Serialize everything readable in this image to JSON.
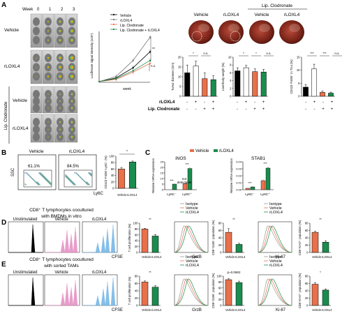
{
  "panels": {
    "A": {
      "letter": "A",
      "week_label": "Week",
      "weeks": [
        "0",
        "1",
        "2",
        "3"
      ],
      "row_labels": [
        "Vehicle",
        "rLOXL4",
        "Vehicle",
        "rLOXL4"
      ],
      "group_label": "Lip. Clodronate",
      "line_chart": {
        "ylabel": "Luciferase signal intensity (x10⁶)",
        "xlabel": "week",
        "legend": [
          "Vehicle",
          "rLOXL4",
          "Lip. Clodronate",
          "Lip. Clodronate + rLOXL4"
        ],
        "stats": [
          "**",
          "n.s."
        ]
      },
      "photo_labels": [
        "Vehicle",
        "rLOXL4",
        "Vehicle",
        "rLOXL4"
      ],
      "photo_group_label": "Lip. Clodronate",
      "table_rows": [
        "rLOXL4",
        "Lip. Clodronate"
      ],
      "table_values": [
        [
          "-",
          "+",
          "-",
          "+"
        ],
        [
          "-",
          "-",
          "+",
          "+"
        ]
      ],
      "bar_charts": [
        {
          "ylabel": "Tumor diameter (mm)",
          "ticks": [
            "0",
            "5",
            "10",
            "15",
            "20"
          ],
          "stats": [
            "*",
            "n.s."
          ]
        },
        {
          "ylabel": "Liver/body weight (%)",
          "ticks": [
            "0",
            "2",
            "4",
            "6",
            "8",
            "10"
          ],
          "stats": [
            "*",
            "*",
            "n.s."
          ]
        },
        {
          "ylabel": "CD11b⁺F4/80⁺ in TILs (%)",
          "ticks": [
            "0",
            "5",
            "10",
            "15"
          ],
          "stats": [
            "***",
            "***",
            "n.s."
          ]
        }
      ]
    },
    "B": {
      "letter": "B",
      "flow_titles": [
        "Vehicle",
        "rLOXL4"
      ],
      "percents": [
        "61.1%",
        "84.5%"
      ],
      "yaxis": "SSC",
      "xaxis": "Ly6C",
      "bar": {
        "ylabel": "CD11b⁺F4/80⁺Ly6C⁺ (%)",
        "ticks": [
          "0",
          "20",
          "40",
          "60",
          "80",
          "100"
        ],
        "stat": "*"
      }
    },
    "C": {
      "letter": "C",
      "legend": [
        "Vehicle",
        "rLOXL4"
      ],
      "charts": [
        {
          "title": "iNOS",
          "ylabel": "Relative mRNA expression",
          "ticks": [
            "0",
            "5",
            "10",
            "15",
            "20",
            "25"
          ],
          "groups": [
            "Ly6C⁻",
            "Ly6C⁺"
          ],
          "note": "not detectable",
          "stats": [
            "***",
            "***"
          ]
        },
        {
          "title": "STAB1",
          "ylabel": "Relative mRNA expression",
          "ticks": [
            "0.00",
            "0.01",
            "0.02",
            "0.03",
            "0.04"
          ],
          "groups": [
            "Ly6C⁻",
            "Ly6C⁺"
          ],
          "stats": [
            "***",
            "***"
          ]
        }
      ]
    },
    "D": {
      "letter": "D",
      "title_line1": "CD8⁺ T lymphocytes cocultured",
      "title_line2": "with BMDMs in vitro",
      "hist_titles": [
        "Unstimulated",
        "Vehicle",
        "rLOXL4"
      ],
      "cfse": "CFSE",
      "prolif_ylabel": "T cell proliferation (%)",
      "markers": [
        "GrzB",
        "Ki-67"
      ],
      "overlay_legend": [
        "Isotype",
        "Vehicle",
        "rLOXL4"
      ],
      "pop_ylabels": [
        "CD8⁺GrzB⁺ population (%)",
        "CD8⁺Ki-67⁺ population (%)"
      ],
      "ticks_prolif": [
        "0",
        "20",
        "40",
        "60",
        "80",
        "100"
      ],
      "ticks_pop": [
        "0",
        "20",
        "40",
        "60",
        "80"
      ],
      "stats": [
        "**",
        "**",
        "**"
      ]
    },
    "E": {
      "letter": "E",
      "title_line1": "CD8⁺ T lymphocytes cocultured",
      "title_line2": "with sorted TAMs",
      "hist_titles": [
        "Unstimulated",
        "Vehicle",
        "rLOXL4"
      ],
      "cfse": "CFSE",
      "prolif_ylabel": "T cell proliferation (%)",
      "markers": [
        "GrzB",
        "Ki-67"
      ],
      "overlay_legend": [
        "Isotype",
        "Vehicle",
        "rLOXL4"
      ],
      "pop_ylabels": [
        "CD8⁺GrzB⁺ population (%)",
        "CD8⁺Ki-67⁺ population (%)"
      ],
      "ticks_prolif": [
        "0",
        "20",
        "40",
        "60",
        "80"
      ],
      "ticks_pop": [
        "0",
        "20",
        "40",
        "60",
        "80",
        "100"
      ],
      "ticks_pop2": [
        "0",
        "20",
        "40",
        "60",
        "80"
      ],
      "stats": [
        "**",
        "p=0.0682",
        "*"
      ]
    }
  },
  "colors": {
    "vehicle": "#000000",
    "rloxl4": "#ffffff",
    "lip": "#e8704a",
    "lip_rloxl4": "#1a8c4e",
    "orange": "#e8704a",
    "green": "#1a8c4e",
    "pink": "#e38cc1",
    "blue": "#6fb3e6",
    "isotype": "#999999"
  },
  "chart_data": [
    {
      "type": "line",
      "panel": "A",
      "x": [
        0,
        1,
        2,
        3
      ],
      "series": [
        {
          "name": "Vehicle",
          "values": [
            0.1,
            0.6,
            2.0,
            4.2
          ]
        },
        {
          "name": "rLOXL4",
          "values": [
            0.1,
            0.8,
            3.0,
            6.2
          ]
        },
        {
          "name": "Lip. Clodronate",
          "values": [
            0.1,
            0.4,
            1.4,
            2.6
          ]
        },
        {
          "name": "Lip. Clodronate + rLOXL4",
          "values": [
            0.1,
            0.5,
            1.6,
            3.0
          ]
        }
      ],
      "xlabel": "week",
      "ylabel": "Luciferase signal intensity (x10⁶)"
    },
    {
      "type": "bar",
      "panel": "A",
      "categories": [
        "Vehicle",
        "rLOXL4",
        "Lip. Clodronate",
        "Lip. Clodronate + rLOXL4"
      ],
      "values": [
        12,
        15.5,
        9,
        8.5
      ],
      "errors": [
        4,
        2.5,
        3,
        2
      ],
      "ylim": [
        0,
        20
      ]
    },
    {
      "type": "bar",
      "panel": "A",
      "categories": [
        "Vehicle",
        "rLOXL4",
        "Lip. Clodronate",
        "Lip. Clodronate + rLOXL4"
      ],
      "values": [
        6.5,
        7.3,
        6.3,
        6.2
      ],
      "errors": [
        0.8,
        0.6,
        0.7,
        0.7
      ],
      "ylim": [
        0,
        10
      ]
    },
    {
      "type": "bar",
      "panel": "A",
      "categories": [
        "Vehicle",
        "rLOXL4",
        "Lip. Clodronate",
        "Lip. Clodronate + rLOXL4"
      ],
      "values": [
        3.5,
        10.5,
        1.5,
        1.2
      ],
      "errors": [
        1.0,
        1.8,
        0.5,
        0.4
      ],
      "ylim": [
        0,
        15
      ]
    },
    {
      "type": "bar",
      "panel": "B",
      "categories": [
        "Vehicle",
        "rLOXL4"
      ],
      "values": [
        60,
        82
      ],
      "errors": [
        5,
        3
      ],
      "ylim": [
        0,
        100
      ]
    },
    {
      "type": "bar",
      "panel": "C",
      "title": "iNOS",
      "categories": [
        "Ly6C⁻",
        "Ly6C⁺"
      ],
      "series": [
        {
          "name": "Vehicle",
          "values": [
            0.5,
            5.5
          ]
        },
        {
          "name": "rLOXL4",
          "values": [
            5.0,
            19.0
          ]
        }
      ],
      "errors": [
        [
          0.2,
          0.5
        ],
        [
          0.4,
          1.0
        ]
      ],
      "ylim": [
        0,
        25
      ]
    },
    {
      "type": "bar",
      "panel": "C",
      "title": "STAB1",
      "categories": [
        "Ly6C⁻",
        "Ly6C⁺"
      ],
      "series": [
        {
          "name": "Vehicle",
          "values": [
            0.002,
            0.013
          ]
        },
        {
          "name": "rLOXL4",
          "values": [
            0.004,
            0.031
          ]
        }
      ],
      "errors": [
        [
          0.0005,
          0.0015
        ],
        [
          0.0008,
          0.002
        ]
      ],
      "ylim": [
        0,
        0.04
      ]
    },
    {
      "type": "bar",
      "panel": "D",
      "categories": [
        "Vehicle",
        "rLOXL4"
      ],
      "values": [
        80,
        56
      ],
      "errors": [
        2,
        5
      ],
      "ylim": [
        0,
        100
      ]
    },
    {
      "type": "bar",
      "panel": "D",
      "categories": [
        "Vehicle",
        "rLOXL4"
      ],
      "values": [
        55,
        22
      ],
      "errors": [
        10,
        3
      ],
      "ylim": [
        0,
        80
      ]
    },
    {
      "type": "bar",
      "panel": "D",
      "categories": [
        "Vehicle",
        "rLOXL4"
      ],
      "values": [
        55,
        28
      ],
      "errors": [
        3,
        4
      ],
      "ylim": [
        0,
        80
      ]
    },
    {
      "type": "bar",
      "panel": "E",
      "categories": [
        "Vehicle",
        "rLOXL4"
      ],
      "values": [
        64,
        50
      ],
      "errors": [
        3,
        4
      ],
      "ylim": [
        0,
        80
      ]
    },
    {
      "type": "bar",
      "panel": "E",
      "categories": [
        "Vehicle",
        "rLOXL4"
      ],
      "values": [
        88,
        78
      ],
      "errors": [
        3,
        5
      ],
      "ylim": [
        0,
        100
      ]
    },
    {
      "type": "bar",
      "panel": "E",
      "categories": [
        "Vehicle",
        "rLOXL4"
      ],
      "values": [
        58,
        42
      ],
      "errors": [
        4,
        3
      ],
      "ylim": [
        0,
        80
      ]
    }
  ]
}
